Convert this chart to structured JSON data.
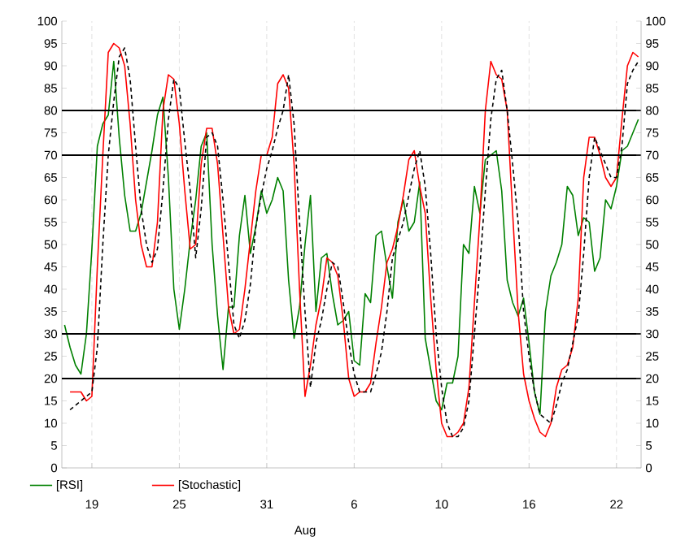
{
  "chart_data": {
    "type": "line",
    "xlabel": "Aug",
    "categories": [
      null,
      null,
      null,
      null,
      null,
      "19",
      null,
      null,
      null,
      null,
      null,
      null,
      null,
      null,
      null,
      null,
      null,
      null,
      null,
      null,
      null,
      "25",
      null,
      null,
      null,
      null,
      null,
      null,
      null,
      null,
      null,
      null,
      null,
      null,
      null,
      null,
      null,
      "31",
      null,
      null,
      null,
      null,
      null,
      null,
      null,
      null,
      null,
      null,
      null,
      null,
      null,
      null,
      null,
      "6",
      null,
      null,
      null,
      null,
      null,
      null,
      null,
      null,
      null,
      null,
      null,
      null,
      null,
      null,
      null,
      "10",
      null,
      null,
      null,
      null,
      null,
      null,
      null,
      null,
      null,
      null,
      null,
      null,
      null,
      null,
      null,
      "16",
      null,
      null,
      null,
      null,
      null,
      null,
      null,
      null,
      null,
      null,
      null,
      null,
      null,
      null,
      null,
      "22",
      null,
      null,
      null,
      null
    ],
    "ylim": [
      0,
      100
    ],
    "yticks": [
      0,
      5,
      10,
      15,
      20,
      25,
      30,
      35,
      40,
      45,
      50,
      55,
      60,
      65,
      70,
      75,
      80,
      85,
      90,
      95,
      100
    ],
    "y2lim": [
      0,
      100
    ],
    "y2ticks": [
      0,
      5,
      10,
      15,
      20,
      25,
      30,
      35,
      40,
      45,
      50,
      55,
      60,
      65,
      70,
      75,
      80,
      85,
      90,
      95,
      100
    ],
    "grid": true,
    "legend": "bottom",
    "marker": "none",
    "ref_lines": [
      {
        "axis": "y",
        "value": 20,
        "color": "#000000"
      },
      {
        "axis": "y",
        "value": 30,
        "color": "#000000"
      },
      {
        "axis": "y",
        "value": 70,
        "color": "#000000"
      },
      {
        "axis": "y",
        "value": 80,
        "color": "#000000"
      }
    ],
    "series": [
      {
        "name": "[RSI]",
        "color": "#008000",
        "line_style": "solid",
        "values": [
          32,
          27,
          23,
          21,
          30,
          49,
          72,
          77,
          79,
          91,
          74,
          61,
          53,
          53,
          57,
          64,
          71,
          79,
          83,
          65,
          40,
          31,
          40,
          51,
          60,
          72,
          75,
          50,
          34,
          22,
          36,
          36,
          52,
          61,
          48,
          54,
          62,
          57,
          60,
          65,
          62,
          42,
          29,
          36,
          50,
          61,
          35,
          47,
          48,
          39,
          32,
          33,
          35,
          24,
          23,
          39,
          37,
          52,
          53,
          45,
          38,
          55,
          60,
          53,
          55,
          64,
          29,
          22,
          15,
          13,
          19,
          19,
          25,
          50,
          48,
          63,
          57,
          69,
          70,
          71,
          62,
          42,
          37,
          34,
          38,
          28,
          17,
          12,
          35,
          43,
          46,
          50,
          63,
          61,
          52,
          56,
          55,
          44,
          47,
          60,
          58,
          63,
          71,
          72,
          75,
          78
        ]
      },
      {
        "name": "[Stochastic]",
        "color": "#ff0000",
        "line_style": "solid",
        "values": [
          null,
          17,
          17,
          17,
          15,
          16,
          45,
          70,
          93,
          95,
          94,
          90,
          77,
          60,
          50,
          45,
          45,
          55,
          80,
          88,
          87,
          77,
          62,
          49,
          50,
          68,
          76,
          76,
          68,
          52,
          36,
          30,
          31,
          40,
          51,
          62,
          70,
          70,
          74,
          86,
          88,
          85,
          68,
          40,
          16,
          23,
          32,
          38,
          47,
          46,
          43,
          33,
          20,
          16,
          17,
          17,
          19,
          28,
          36,
          46,
          49,
          54,
          61,
          69,
          71,
          63,
          57,
          38,
          22,
          10,
          7,
          7,
          8,
          10,
          18,
          37,
          56,
          80,
          91,
          88,
          87,
          80,
          57,
          35,
          21,
          15,
          11,
          8,
          7,
          10,
          18,
          22,
          23,
          27,
          38,
          65,
          74,
          74,
          70,
          65,
          63,
          65,
          78,
          90,
          93,
          92
        ]
      },
      {
        "color": "#000000",
        "line_style": "dashed",
        "values": [
          null,
          13,
          14,
          15,
          16,
          17,
          27,
          50,
          70,
          82,
          92,
          94,
          87,
          72,
          58,
          50,
          46,
          49,
          62,
          78,
          87,
          85,
          73,
          62,
          47,
          58,
          74,
          75,
          72,
          60,
          46,
          32,
          29,
          33,
          41,
          54,
          61,
          67,
          71,
          76,
          80,
          88,
          77,
          55,
          35,
          18,
          28,
          33,
          40,
          46,
          45,
          37,
          28,
          21,
          17,
          17,
          17,
          21,
          26,
          35,
          47,
          51,
          55,
          61,
          67,
          71,
          63,
          48,
          30,
          18,
          10,
          7,
          7,
          9,
          15,
          30,
          45,
          62,
          78,
          87,
          89,
          80,
          68,
          55,
          35,
          25,
          17,
          12,
          11,
          10,
          14,
          19,
          22,
          28,
          34,
          48,
          65,
          74,
          71,
          68,
          65,
          65,
          72,
          86,
          89,
          91
        ]
      }
    ]
  }
}
